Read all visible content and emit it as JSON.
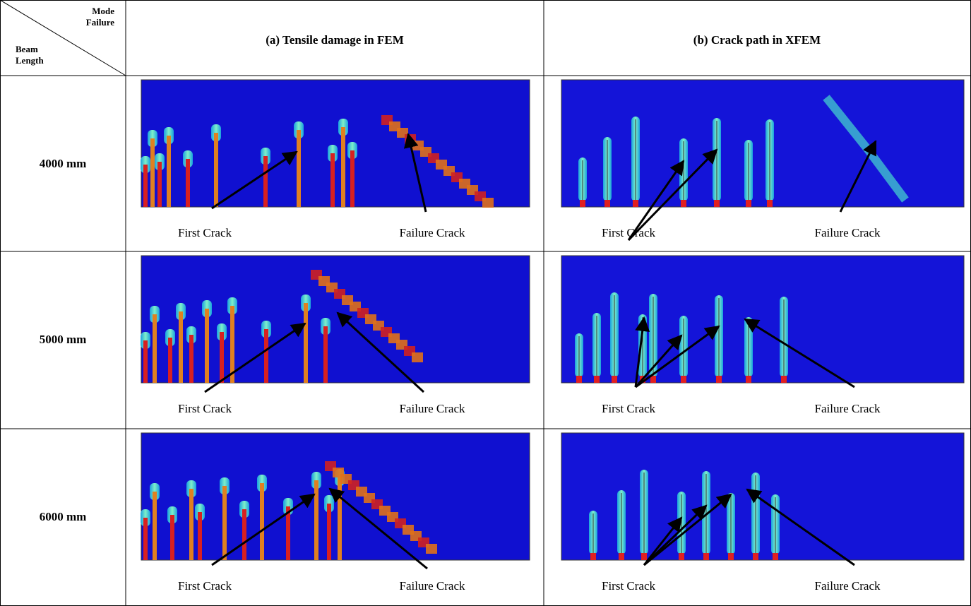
{
  "header": {
    "corner_top": [
      "Mode",
      "Failure"
    ],
    "corner_bottom": [
      "Beam",
      "Length"
    ],
    "columns": [
      "(a) Tensile damage in FEM",
      "(b) Crack path in XFEM"
    ]
  },
  "rows": [
    {
      "label": "4000 mm",
      "fem": {
        "first": "First Crack",
        "failure": "Failure Crack"
      },
      "xfem": {
        "first": "First Crack",
        "failure": "Failure Crack"
      }
    },
    {
      "label": "5000 mm",
      "fem": {
        "first": "First Crack",
        "failure": "Failure Crack"
      },
      "xfem": {
        "first": "First Crack",
        "failure": "Failure Crack"
      }
    },
    {
      "label": "6000 mm",
      "fem": {
        "first": "First Crack",
        "failure": "Failure Crack"
      },
      "xfem": {
        "first": "First Crack",
        "failure": "Failure Crack"
      }
    }
  ]
}
